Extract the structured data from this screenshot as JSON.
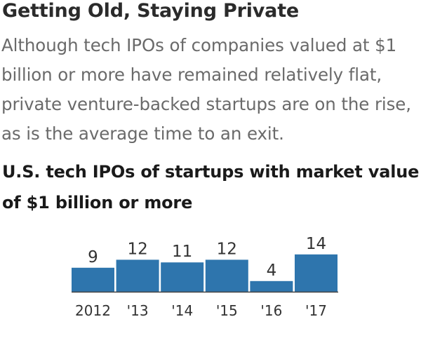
{
  "headline": "Getting Old, Staying Private",
  "dek": "Although tech IPOs of companies valued at $1 billion or more have remained relatively flat, private venture-backed startups are on the rise, as is the average time to an exit.",
  "colors": {
    "bar": "#2e75ad",
    "headline": "#2b2b2b",
    "dek": "#6a6a6a"
  },
  "chart_data": {
    "type": "bar",
    "title": "U.S. tech IPOs of startups with market value of $1 billion or more",
    "categories": [
      "2012",
      "'13",
      "'14",
      "'15",
      "'16",
      "'17"
    ],
    "values": [
      9,
      12,
      11,
      12,
      4,
      14
    ],
    "xlabel": "",
    "ylabel": "",
    "ylim": [
      0,
      14
    ],
    "grid": false,
    "legend": "none",
    "data_labels": true
  }
}
